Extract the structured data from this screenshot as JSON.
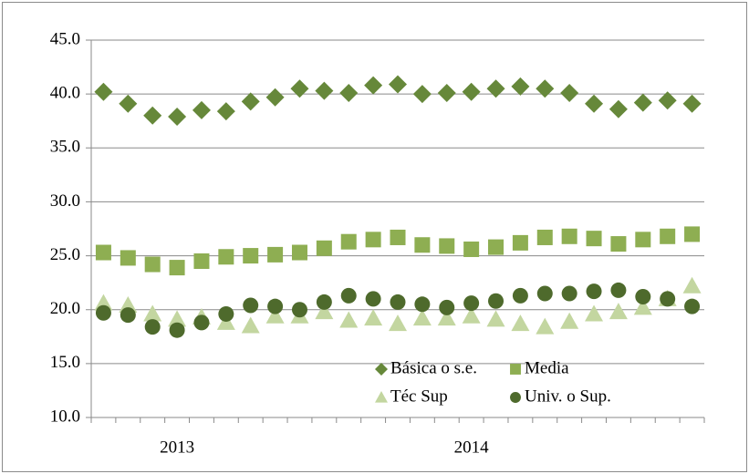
{
  "chart_data": {
    "type": "line",
    "categories": [
      null,
      null,
      null,
      "2013",
      null,
      null,
      null,
      null,
      null,
      null,
      null,
      null,
      null,
      null,
      null,
      "2014",
      null,
      null,
      null,
      null,
      null,
      null,
      null,
      null,
      null
    ],
    "series": [
      {
        "name": "Básica o s.e.",
        "color": "#66883a",
        "marker": "diamond",
        "values": [
          40.2,
          39.1,
          38.0,
          37.9,
          38.5,
          38.4,
          39.3,
          39.7,
          40.5,
          40.3,
          40.1,
          40.8,
          40.9,
          40.0,
          40.1,
          40.2,
          40.5,
          40.7,
          40.5,
          40.1,
          39.1,
          38.6,
          39.2,
          39.4,
          39.1
        ]
      },
      {
        "name": "Media",
        "color": "#8eae52",
        "marker": "square",
        "values": [
          25.3,
          24.8,
          24.2,
          23.9,
          24.5,
          24.9,
          25.0,
          25.1,
          25.3,
          25.7,
          26.3,
          26.5,
          26.7,
          26.0,
          25.9,
          25.6,
          25.8,
          26.2,
          26.7,
          26.8,
          26.6,
          26.1,
          26.5,
          26.8,
          27.0
        ]
      },
      {
        "name": "Téc Sup",
        "color": "#c3d6a0",
        "marker": "triangle",
        "values": [
          20.6,
          20.4,
          19.6,
          19.1,
          19.3,
          18.8,
          18.5,
          19.4,
          19.4,
          19.8,
          19.0,
          19.2,
          18.7,
          19.2,
          19.2,
          19.4,
          19.1,
          18.7,
          18.4,
          18.9,
          19.6,
          19.8,
          20.2,
          21.0,
          22.2
        ]
      },
      {
        "name": "Univ. o Sup.",
        "color": "#4e6a2c",
        "marker": "circle",
        "values": [
          19.7,
          19.5,
          18.4,
          18.1,
          18.8,
          19.6,
          20.4,
          20.3,
          20.0,
          20.7,
          21.3,
          21.0,
          20.7,
          20.5,
          20.2,
          20.6,
          20.8,
          21.3,
          21.5,
          21.5,
          21.7,
          21.8,
          21.2,
          21.0,
          20.3
        ]
      }
    ],
    "ylim": [
      10,
      45
    ],
    "yticks": [
      {
        "value": 10,
        "label": "10.0"
      },
      {
        "value": 15,
        "label": "15.0"
      },
      {
        "value": 20,
        "label": "20.0"
      },
      {
        "value": 25,
        "label": "25.0"
      },
      {
        "value": 30,
        "label": "30.0"
      },
      {
        "value": 35,
        "label": "35.0"
      },
      {
        "value": 40,
        "label": "40.0"
      },
      {
        "value": 45,
        "label": "45.0"
      }
    ],
    "grid": true,
    "legend": "lower center"
  }
}
